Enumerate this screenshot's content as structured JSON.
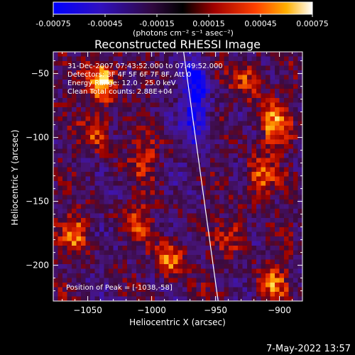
{
  "colorbar": {
    "ticks": [
      "-0.00075",
      "-0.00045",
      "-0.00015",
      "0.00015",
      "0.00045",
      "0.00075"
    ],
    "units": "(photons cm⁻² s⁻¹ asec⁻²)"
  },
  "plot": {
    "title": "Reconstructed RHESSI Image",
    "info_lines": [
      "31-Dec-2007 07:43:52.000 to 07:49:52.000",
      "Detectors: 3F 4F 5F 6F 7F 8F, Att 0",
      "Energy Range: 12.0 - 25.0 keV",
      "Clean     Total counts: 2.88E+04"
    ],
    "peak_label": "Position of Peak = [-1038,-58]"
  },
  "footer": {
    "timestamp": "7-May-2022 13:57"
  },
  "chart_data": {
    "type": "heatmap",
    "title": "Reconstructed RHESSI Image",
    "xlabel": "Heliocentric X (arcsec)",
    "ylabel": "Heliocentric Y (arcsec)",
    "xlim": [
      -1077,
      -882
    ],
    "ylim": [
      -228,
      -33
    ],
    "x_ticks": [
      -1050,
      -1000,
      -950,
      -900
    ],
    "y_ticks": [
      -50,
      -100,
      -150,
      -200
    ],
    "x_tick_labels": [
      "−1050",
      "−1000",
      "−950",
      "−900"
    ],
    "y_tick_labels": [
      "−50",
      "−100",
      "−150",
      "−200"
    ],
    "color_range": [
      -0.00075,
      0.00075
    ],
    "colormap": [
      "#0000ff",
      "#5010a0",
      "#000000",
      "#a01010",
      "#ff3000",
      "#ffa000",
      "#ffffe0"
    ],
    "limb_line": [
      [
        -975,
        -33
      ],
      [
        -948,
        -228
      ]
    ],
    "peak": {
      "x": -1038,
      "y": -58
    },
    "hotspots": [
      {
        "x": -1038,
        "y": -55,
        "value": 0.00075
      },
      {
        "x": -1043,
        "y": -95,
        "value": 0.0004
      },
      {
        "x": -1060,
        "y": -175,
        "value": 0.00045
      },
      {
        "x": -1005,
        "y": -115,
        "value": 0.00035
      },
      {
        "x": -1010,
        "y": -165,
        "value": 0.0003
      },
      {
        "x": -985,
        "y": -195,
        "value": 0.0005
      },
      {
        "x": -905,
        "y": -90,
        "value": 0.00055
      },
      {
        "x": -915,
        "y": -130,
        "value": 0.0005
      },
      {
        "x": -935,
        "y": -175,
        "value": 0.00035
      },
      {
        "x": -905,
        "y": -215,
        "value": 0.0004
      },
      {
        "x": -925,
        "y": -55,
        "value": 0.0004
      }
    ]
  }
}
